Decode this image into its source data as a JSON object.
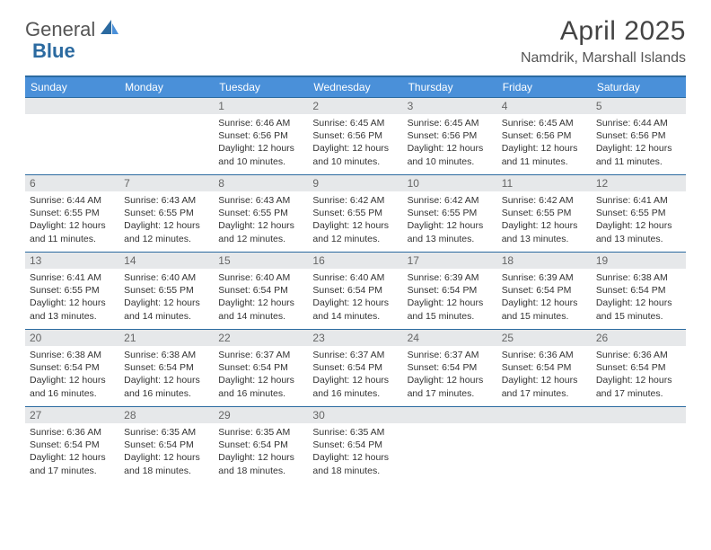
{
  "logo": {
    "text1": "General",
    "text2": "Blue"
  },
  "title": "April 2025",
  "location": "Namdrik, Marshall Islands",
  "colors": {
    "header_bg": "#4a90d9",
    "header_text": "#ffffff",
    "border": "#2b6aa0",
    "daynum_bg": "#e6e8ea",
    "body_text": "#333333",
    "title_text": "#444444"
  },
  "day_labels": [
    "Sunday",
    "Monday",
    "Tuesday",
    "Wednesday",
    "Thursday",
    "Friday",
    "Saturday"
  ],
  "weeks": [
    [
      {
        "n": "",
        "sunrise": "",
        "sunset": "",
        "daylight": ""
      },
      {
        "n": "",
        "sunrise": "",
        "sunset": "",
        "daylight": ""
      },
      {
        "n": "1",
        "sunrise": "Sunrise: 6:46 AM",
        "sunset": "Sunset: 6:56 PM",
        "daylight": "Daylight: 12 hours and 10 minutes."
      },
      {
        "n": "2",
        "sunrise": "Sunrise: 6:45 AM",
        "sunset": "Sunset: 6:56 PM",
        "daylight": "Daylight: 12 hours and 10 minutes."
      },
      {
        "n": "3",
        "sunrise": "Sunrise: 6:45 AM",
        "sunset": "Sunset: 6:56 PM",
        "daylight": "Daylight: 12 hours and 10 minutes."
      },
      {
        "n": "4",
        "sunrise": "Sunrise: 6:45 AM",
        "sunset": "Sunset: 6:56 PM",
        "daylight": "Daylight: 12 hours and 11 minutes."
      },
      {
        "n": "5",
        "sunrise": "Sunrise: 6:44 AM",
        "sunset": "Sunset: 6:56 PM",
        "daylight": "Daylight: 12 hours and 11 minutes."
      }
    ],
    [
      {
        "n": "6",
        "sunrise": "Sunrise: 6:44 AM",
        "sunset": "Sunset: 6:55 PM",
        "daylight": "Daylight: 12 hours and 11 minutes."
      },
      {
        "n": "7",
        "sunrise": "Sunrise: 6:43 AM",
        "sunset": "Sunset: 6:55 PM",
        "daylight": "Daylight: 12 hours and 12 minutes."
      },
      {
        "n": "8",
        "sunrise": "Sunrise: 6:43 AM",
        "sunset": "Sunset: 6:55 PM",
        "daylight": "Daylight: 12 hours and 12 minutes."
      },
      {
        "n": "9",
        "sunrise": "Sunrise: 6:42 AM",
        "sunset": "Sunset: 6:55 PM",
        "daylight": "Daylight: 12 hours and 12 minutes."
      },
      {
        "n": "10",
        "sunrise": "Sunrise: 6:42 AM",
        "sunset": "Sunset: 6:55 PM",
        "daylight": "Daylight: 12 hours and 13 minutes."
      },
      {
        "n": "11",
        "sunrise": "Sunrise: 6:42 AM",
        "sunset": "Sunset: 6:55 PM",
        "daylight": "Daylight: 12 hours and 13 minutes."
      },
      {
        "n": "12",
        "sunrise": "Sunrise: 6:41 AM",
        "sunset": "Sunset: 6:55 PM",
        "daylight": "Daylight: 12 hours and 13 minutes."
      }
    ],
    [
      {
        "n": "13",
        "sunrise": "Sunrise: 6:41 AM",
        "sunset": "Sunset: 6:55 PM",
        "daylight": "Daylight: 12 hours and 13 minutes."
      },
      {
        "n": "14",
        "sunrise": "Sunrise: 6:40 AM",
        "sunset": "Sunset: 6:55 PM",
        "daylight": "Daylight: 12 hours and 14 minutes."
      },
      {
        "n": "15",
        "sunrise": "Sunrise: 6:40 AM",
        "sunset": "Sunset: 6:54 PM",
        "daylight": "Daylight: 12 hours and 14 minutes."
      },
      {
        "n": "16",
        "sunrise": "Sunrise: 6:40 AM",
        "sunset": "Sunset: 6:54 PM",
        "daylight": "Daylight: 12 hours and 14 minutes."
      },
      {
        "n": "17",
        "sunrise": "Sunrise: 6:39 AM",
        "sunset": "Sunset: 6:54 PM",
        "daylight": "Daylight: 12 hours and 15 minutes."
      },
      {
        "n": "18",
        "sunrise": "Sunrise: 6:39 AM",
        "sunset": "Sunset: 6:54 PM",
        "daylight": "Daylight: 12 hours and 15 minutes."
      },
      {
        "n": "19",
        "sunrise": "Sunrise: 6:38 AM",
        "sunset": "Sunset: 6:54 PM",
        "daylight": "Daylight: 12 hours and 15 minutes."
      }
    ],
    [
      {
        "n": "20",
        "sunrise": "Sunrise: 6:38 AM",
        "sunset": "Sunset: 6:54 PM",
        "daylight": "Daylight: 12 hours and 16 minutes."
      },
      {
        "n": "21",
        "sunrise": "Sunrise: 6:38 AM",
        "sunset": "Sunset: 6:54 PM",
        "daylight": "Daylight: 12 hours and 16 minutes."
      },
      {
        "n": "22",
        "sunrise": "Sunrise: 6:37 AM",
        "sunset": "Sunset: 6:54 PM",
        "daylight": "Daylight: 12 hours and 16 minutes."
      },
      {
        "n": "23",
        "sunrise": "Sunrise: 6:37 AM",
        "sunset": "Sunset: 6:54 PM",
        "daylight": "Daylight: 12 hours and 16 minutes."
      },
      {
        "n": "24",
        "sunrise": "Sunrise: 6:37 AM",
        "sunset": "Sunset: 6:54 PM",
        "daylight": "Daylight: 12 hours and 17 minutes."
      },
      {
        "n": "25",
        "sunrise": "Sunrise: 6:36 AM",
        "sunset": "Sunset: 6:54 PM",
        "daylight": "Daylight: 12 hours and 17 minutes."
      },
      {
        "n": "26",
        "sunrise": "Sunrise: 6:36 AM",
        "sunset": "Sunset: 6:54 PM",
        "daylight": "Daylight: 12 hours and 17 minutes."
      }
    ],
    [
      {
        "n": "27",
        "sunrise": "Sunrise: 6:36 AM",
        "sunset": "Sunset: 6:54 PM",
        "daylight": "Daylight: 12 hours and 17 minutes."
      },
      {
        "n": "28",
        "sunrise": "Sunrise: 6:35 AM",
        "sunset": "Sunset: 6:54 PM",
        "daylight": "Daylight: 12 hours and 18 minutes."
      },
      {
        "n": "29",
        "sunrise": "Sunrise: 6:35 AM",
        "sunset": "Sunset: 6:54 PM",
        "daylight": "Daylight: 12 hours and 18 minutes."
      },
      {
        "n": "30",
        "sunrise": "Sunrise: 6:35 AM",
        "sunset": "Sunset: 6:54 PM",
        "daylight": "Daylight: 12 hours and 18 minutes."
      },
      {
        "n": "",
        "sunrise": "",
        "sunset": "",
        "daylight": ""
      },
      {
        "n": "",
        "sunrise": "",
        "sunset": "",
        "daylight": ""
      },
      {
        "n": "",
        "sunrise": "",
        "sunset": "",
        "daylight": ""
      }
    ]
  ]
}
